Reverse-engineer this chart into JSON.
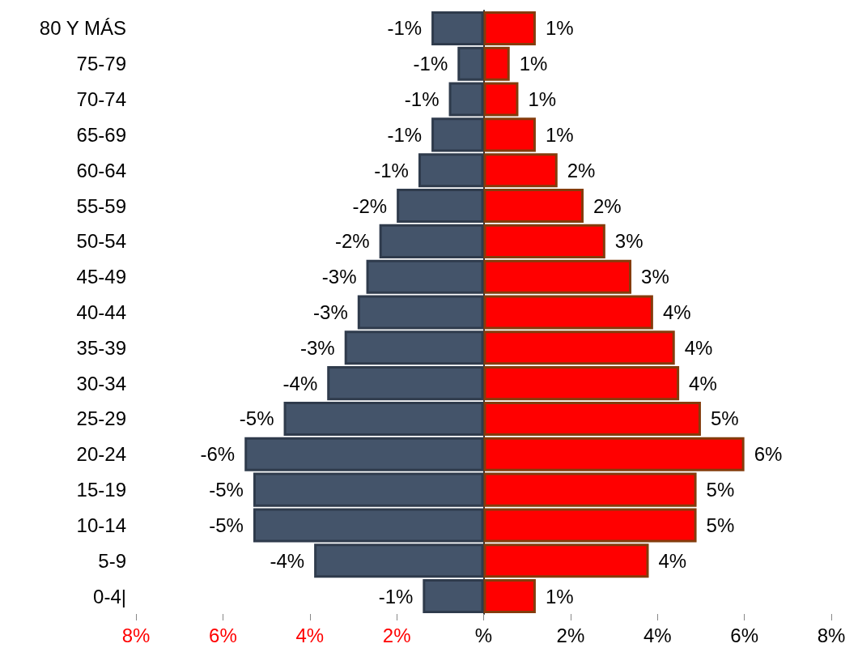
{
  "chart_data": {
    "type": "bar",
    "orientation": "horizontal",
    "categories": [
      "80 Y MÁS",
      "75-79",
      "70-74",
      "65-69",
      "60-64",
      "55-59",
      "50-54",
      "45-49",
      "40-44",
      "35-39",
      "30-34",
      "25-29",
      "20-24",
      "15-19",
      "10-14",
      "5-9",
      "0-4|"
    ],
    "series": [
      {
        "color": "#44546a",
        "values": [
          -1.2,
          -0.6,
          -0.8,
          -1.2,
          -1.5,
          -2.0,
          -2.4,
          -2.7,
          -2.9,
          -3.2,
          -3.6,
          -4.6,
          -5.5,
          -5.3,
          -5.3,
          -3.9,
          -1.4
        ],
        "value_labels": [
          "-1%",
          "-1%",
          "-1%",
          "-1%",
          "-1%",
          "-2%",
          "-2%",
          "-3%",
          "-3%",
          "-3%",
          "-4%",
          "-5%",
          "-6%",
          "-5%",
          "-5%",
          "-4%",
          "-1%"
        ]
      },
      {
        "color": "#ff0000",
        "values": [
          1.2,
          0.6,
          0.8,
          1.2,
          1.7,
          2.3,
          2.8,
          3.4,
          3.9,
          4.4,
          4.5,
          5.0,
          6.0,
          4.9,
          4.9,
          3.8,
          1.2
        ],
        "value_labels": [
          "1%",
          "1%",
          "1%",
          "1%",
          "2%",
          "2%",
          "3%",
          "3%",
          "4%",
          "4%",
          "4%",
          "5%",
          "6%",
          "5%",
          "5%",
          "4%",
          "1%"
        ]
      }
    ],
    "xlim": [
      -8,
      8
    ],
    "xticks": [
      {
        "value": -8,
        "label": "8%"
      },
      {
        "value": -6,
        "label": "6%"
      },
      {
        "value": -4,
        "label": "4%"
      },
      {
        "value": -2,
        "label": "2%"
      },
      {
        "value": 0,
        "label": "%"
      },
      {
        "value": 2,
        "label": "2%"
      },
      {
        "value": 4,
        "label": "4%"
      },
      {
        "value": 6,
        "label": "6%"
      },
      {
        "value": 8,
        "label": "8%"
      }
    ],
    "stacked": true
  }
}
